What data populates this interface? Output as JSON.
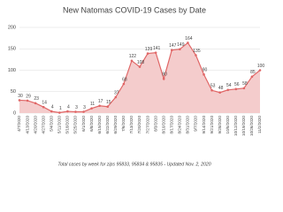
{
  "chart_data": {
    "type": "area",
    "title": "New Natomas COVID-19 Cases by Date",
    "note": "Total cases by week for zips 95833, 95834 & 95835 - Updated Nov. 2, 2020",
    "categories": [
      "4/7/2020",
      "4/13/2020",
      "4/20/2020",
      "4/27/2020",
      "5/4/2020",
      "5/11/2020",
      "5/18/2020",
      "5/25/2020",
      "6/1/2020",
      "6/8/2020",
      "6/15/2020",
      "6/22/2020",
      "6/29/2020",
      "7/6/2020",
      "7/13/2020",
      "7/20/2020",
      "7/27/2020",
      "8/3/2020",
      "8/10/2020",
      "8/17/2020",
      "8/24/2020",
      "8/31/2020",
      "9/7/2020",
      "9/14/2020",
      "9/21/2020",
      "9/28/2020",
      "10/5/2020",
      "10/12/2020",
      "10/19/2020",
      "10/26/2020",
      "11/2/2020"
    ],
    "values": [
      30,
      29,
      23,
      14,
      4,
      1,
      4,
      3,
      3,
      11,
      17,
      15,
      37,
      68,
      122,
      108,
      139,
      141,
      80,
      147,
      149,
      164,
      135,
      90,
      53,
      48,
      54,
      56,
      58,
      85,
      100
    ],
    "color": "#e06666",
    "fill": "#f4cccc",
    "ylim": [
      0,
      200
    ],
    "yticks": [
      0,
      50,
      100,
      150,
      200
    ],
    "grid": true
  }
}
